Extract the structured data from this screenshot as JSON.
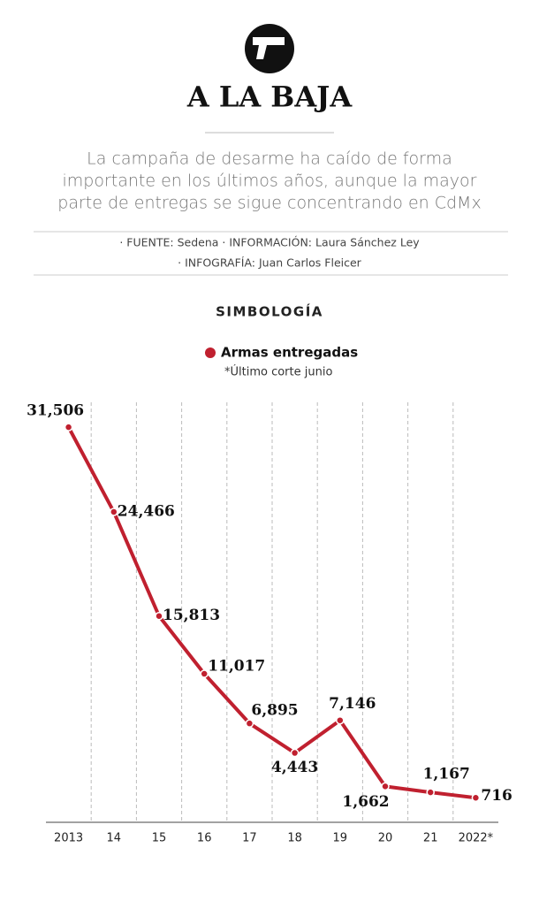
{
  "header": {
    "title": "A LA BAJA",
    "subtitle": [
      "La campaña de desarme ha caído de forma",
      "importante en los últimos años, aunque la mayor",
      "parte de entregas se sigue concentrando en CdMx"
    ],
    "source": [
      "· FUENTE: Sedena · INFORMACIÓN: Laura Sánchez Ley",
      "· INFOGRAFÍA: Juan Carlos Fleicer"
    ]
  },
  "chart_data": {
    "type": "line",
    "legend_title": "SIMBOLOGÍA",
    "note": "*Último corte junio",
    "categories": [
      "2013",
      "14",
      "15",
      "16",
      "17",
      "18",
      "19",
      "20",
      "21",
      "2022*"
    ],
    "series": [
      {
        "name": "Armas entregadas",
        "color": "#c0202f",
        "values": [
          31506,
          24466,
          15813,
          11017,
          6895,
          4443,
          7146,
          1662,
          1167,
          716
        ],
        "value_labels": [
          "31,506",
          "24,466",
          "15,813",
          "11,017",
          "6,895",
          "4,443",
          "7,146",
          "1,662",
          "1,167",
          "716"
        ]
      }
    ],
    "ylim": [
      0,
      32000
    ],
    "grid": true
  }
}
